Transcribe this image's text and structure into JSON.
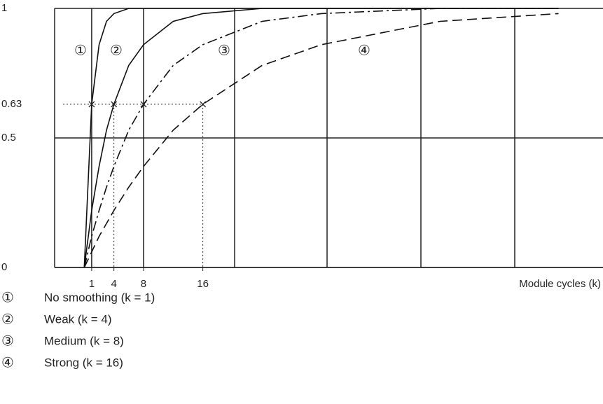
{
  "chart_data": {
    "type": "line",
    "x_label": "Module cycles (k)",
    "x": [
      0,
      1,
      2,
      3,
      4,
      6,
      8,
      12,
      16,
      24,
      32,
      48,
      64
    ],
    "xlim": [
      -4,
      70
    ],
    "xticks": [
      1,
      4,
      8,
      16
    ],
    "ylim": [
      0,
      1
    ],
    "yticks": [
      0,
      0.5,
      0.63,
      1
    ],
    "series": [
      {
        "marker": "①",
        "name": "No smoothing (k = 1)",
        "k": 1,
        "color": "#111111",
        "dash": "solid",
        "values": [
          0,
          0.63,
          0.86,
          0.95,
          0.98,
          1,
          1,
          1,
          1,
          1,
          1,
          1,
          1
        ]
      },
      {
        "marker": "②",
        "name": "Weak (k = 4)",
        "k": 4,
        "color": "#111111",
        "dash": "solid",
        "values": [
          0,
          0.22,
          0.39,
          0.53,
          0.63,
          0.78,
          0.86,
          0.95,
          0.98,
          1,
          1,
          1,
          1
        ]
      },
      {
        "marker": "③",
        "name": "Medium (k = 8)",
        "k": 8,
        "color": "#111111",
        "dash": "dashdot",
        "values": [
          0,
          0.12,
          0.22,
          0.31,
          0.39,
          0.53,
          0.63,
          0.78,
          0.86,
          0.95,
          0.98,
          1,
          1
        ]
      },
      {
        "marker": "④",
        "name": "Strong (k = 16)",
        "k": 16,
        "color": "#111111",
        "dash": "dashed",
        "values": [
          0,
          0.06,
          0.12,
          0.17,
          0.22,
          0.31,
          0.39,
          0.53,
          0.63,
          0.78,
          0.86,
          0.95,
          0.98
        ]
      }
    ]
  }
}
